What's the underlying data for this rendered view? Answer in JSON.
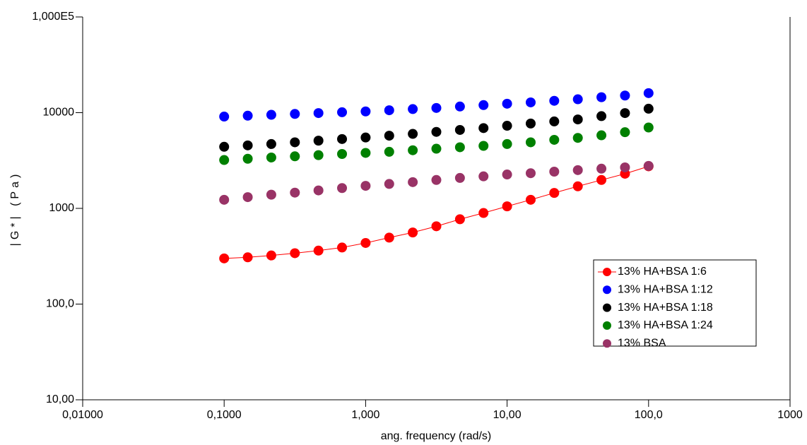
{
  "chart_data": {
    "type": "scatter",
    "x_label": "ang. frequency (rad/s)",
    "y_label": "|G*| (Pa)",
    "log_x": true,
    "log_y": true,
    "xlim": [
      0.01,
      1000
    ],
    "ylim": [
      10,
      100000
    ],
    "xticks": [
      {
        "value": 0.01,
        "label": "0,01000"
      },
      {
        "value": 0.1,
        "label": "0,1000"
      },
      {
        "value": 1,
        "label": "1,000"
      },
      {
        "value": 10,
        "label": "10,00"
      },
      {
        "value": 100,
        "label": "100,0"
      },
      1000
    ],
    "yticks": [
      {
        "value": 10,
        "label": "10,00"
      },
      {
        "value": 100,
        "label": "100,0"
      },
      1000,
      10000,
      {
        "value": 100000,
        "label": "1,000E5"
      }
    ],
    "legend": "lower-right",
    "x": [
      0.1,
      0.1468,
      0.2154,
      0.3162,
      0.4642,
      0.6813,
      1,
      1.468,
      2.154,
      3.162,
      4.642,
      6.813,
      10,
      14.68,
      21.54,
      31.62,
      46.42,
      68.13,
      100
    ],
    "series": [
      {
        "name": "13% HA+BSA 1:6",
        "color": "#ff0000",
        "line": true,
        "values": [
          300,
          308,
          322,
          340,
          362,
          390,
          435,
          495,
          560,
          650,
          770,
          895,
          1050,
          1230,
          1450,
          1700,
          1980,
          2300,
          2750
        ]
      },
      {
        "name": "13% HA+BSA 1:12",
        "color": "#0000ff",
        "line": false,
        "values": [
          9100,
          9300,
          9500,
          9700,
          9900,
          10100,
          10300,
          10600,
          10900,
          11200,
          11600,
          12000,
          12400,
          12800,
          13300,
          13800,
          14500,
          15100,
          16000
        ]
      },
      {
        "name": "13% HA+BSA 1:18",
        "color": "#000000",
        "line": false,
        "values": [
          4400,
          4550,
          4700,
          4900,
          5100,
          5300,
          5500,
          5750,
          6000,
          6300,
          6600,
          6900,
          7300,
          7700,
          8100,
          8500,
          9200,
          9900,
          11000
        ]
      },
      {
        "name": "13% HA+BSA 1:24",
        "color": "#008000",
        "line": false,
        "values": [
          3200,
          3300,
          3400,
          3500,
          3600,
          3700,
          3800,
          3900,
          4050,
          4200,
          4350,
          4500,
          4700,
          4900,
          5200,
          5450,
          5800,
          6250,
          7000
        ]
      },
      {
        "name": "13% BSA",
        "color": "#993366",
        "line": false,
        "values": [
          1230,
          1310,
          1390,
          1460,
          1540,
          1630,
          1720,
          1800,
          1880,
          1980,
          2080,
          2160,
          2260,
          2330,
          2420,
          2510,
          2600,
          2680,
          2780
        ]
      }
    ]
  }
}
